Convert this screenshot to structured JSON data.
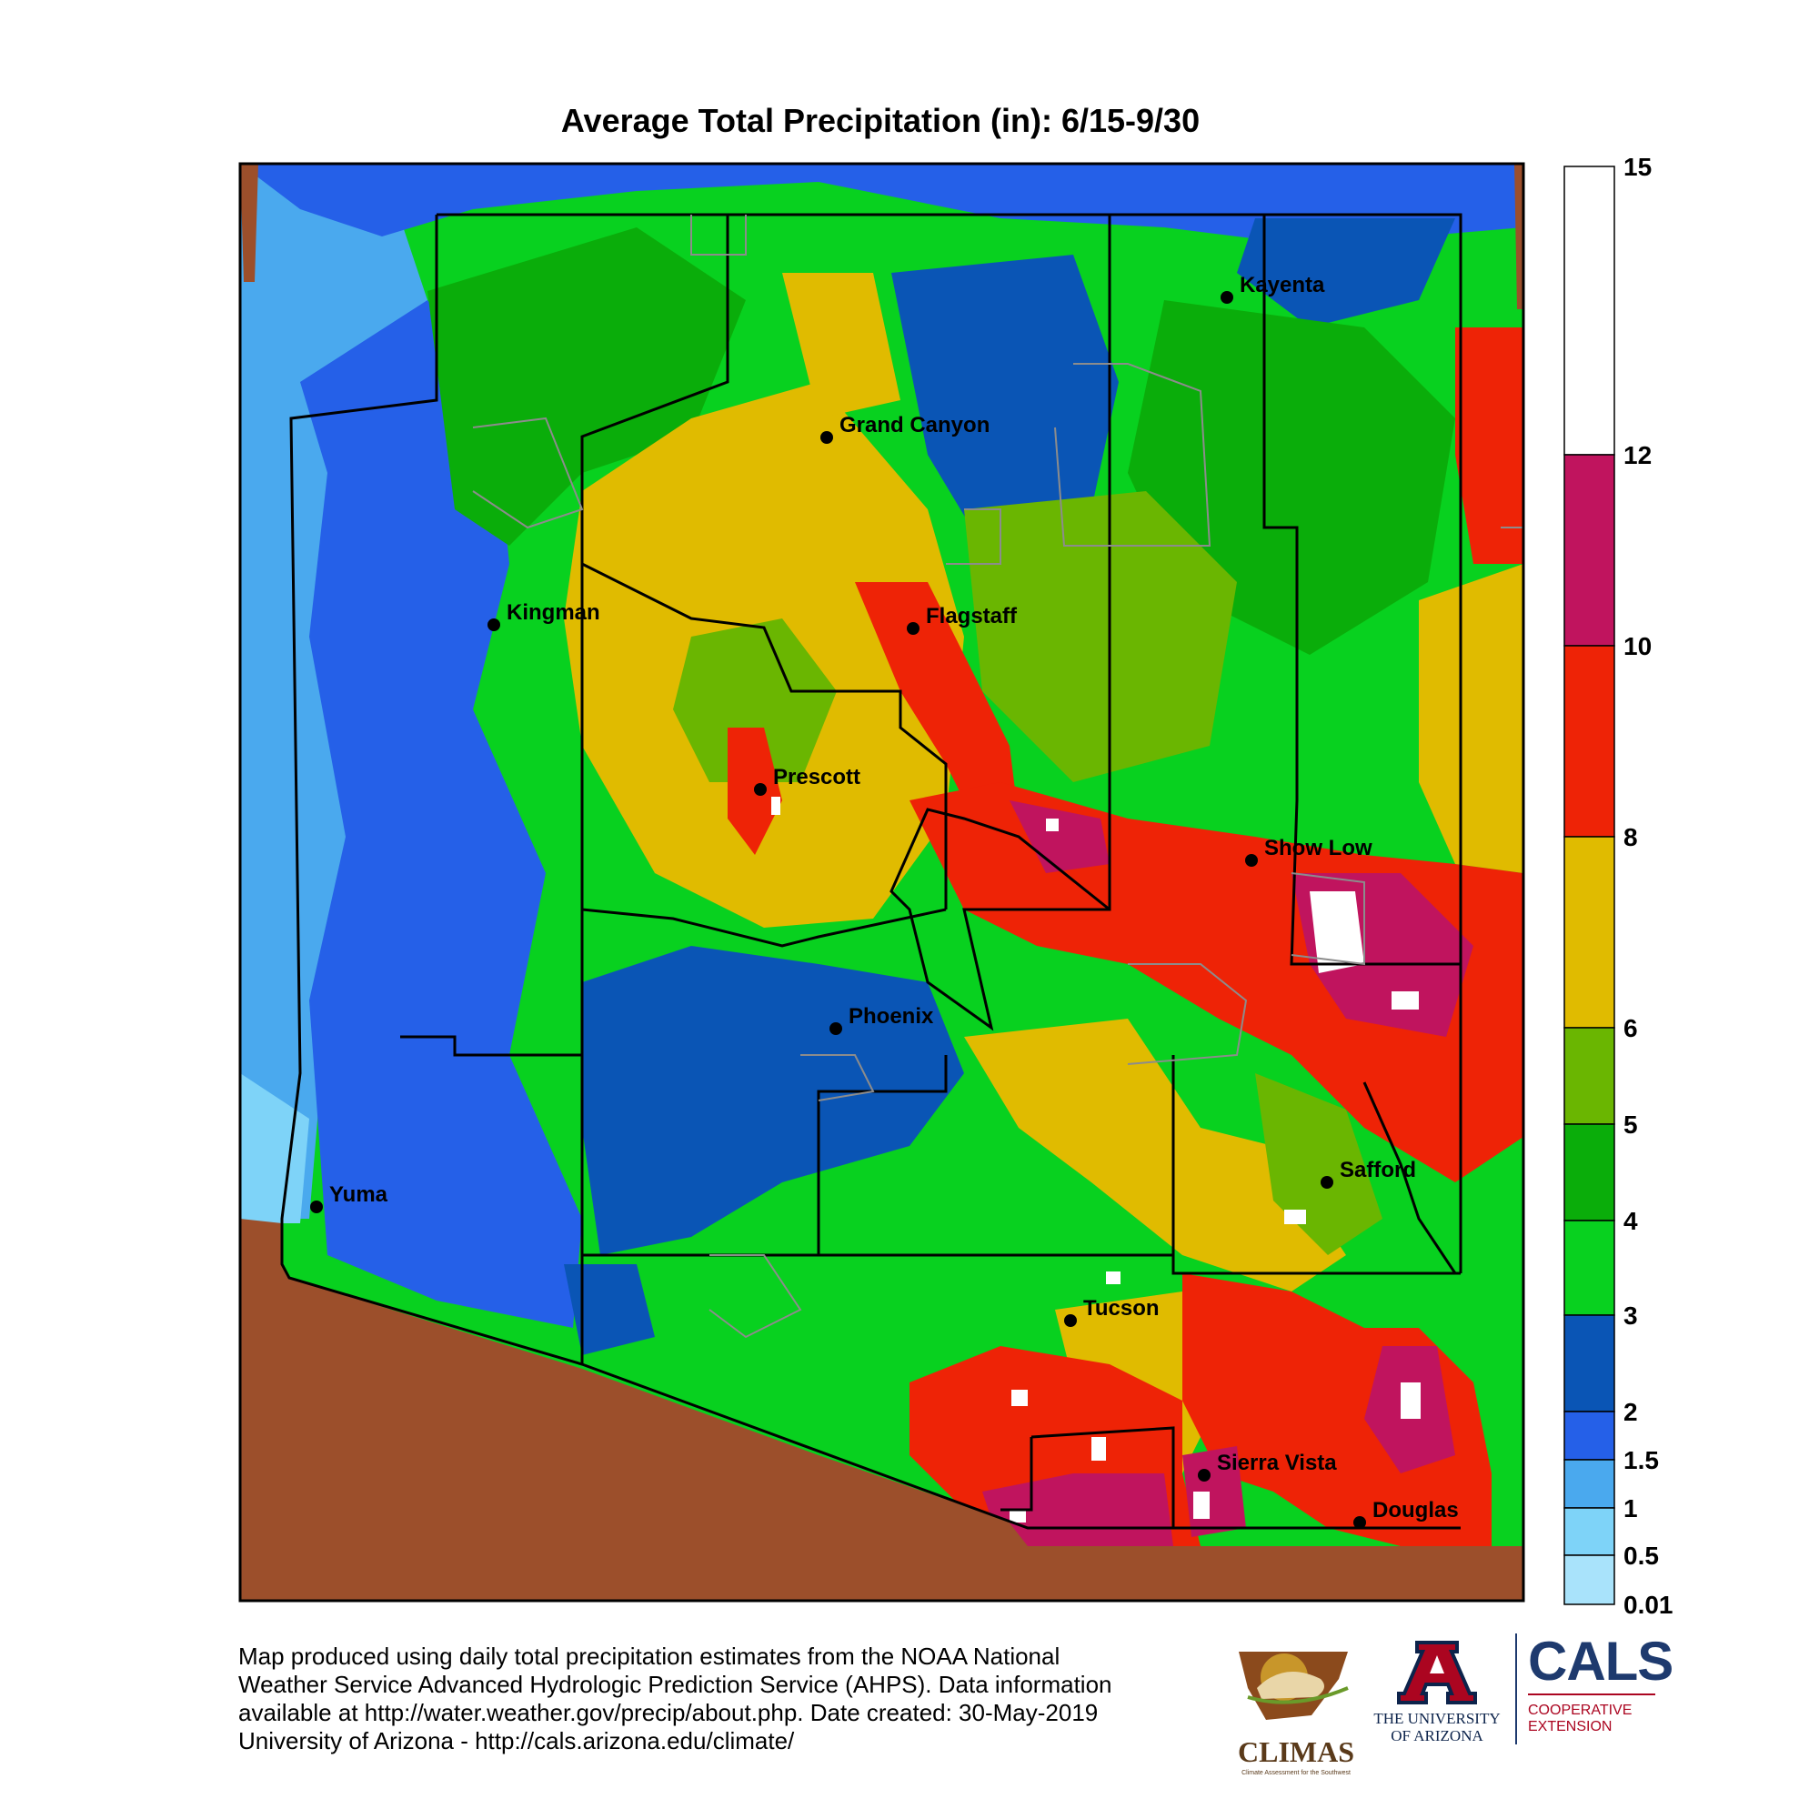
{
  "title": "Average Total Precipitation (in): 6/15-9/30",
  "legend": {
    "ticks": [
      "15",
      "12",
      "10",
      "8",
      "6",
      "5",
      "4",
      "3",
      "2",
      "1.5",
      "1",
      "0.5",
      "0.01"
    ],
    "colors": [
      "#ffffff",
      "#c0145e",
      "#ee2306",
      "#e0bb00",
      "#6ab601",
      "#0aad0a",
      "#08d11f",
      "#0a55b5",
      "#2560e8",
      "#4aa9ee",
      "#7ed3f8",
      "#a9e3fb"
    ]
  },
  "cities": [
    {
      "name": "Kayenta"
    },
    {
      "name": "Grand Canyon"
    },
    {
      "name": "Kingman"
    },
    {
      "name": "Flagstaff"
    },
    {
      "name": "Prescott"
    },
    {
      "name": "Show Low"
    },
    {
      "name": "Phoenix"
    },
    {
      "name": "Safford"
    },
    {
      "name": "Yuma"
    },
    {
      "name": "Tucson"
    },
    {
      "name": "Sierra Vista"
    },
    {
      "name": "Douglas"
    }
  ],
  "footer": {
    "lines": [
      "Map produced using daily total precipitation estimates from the NOAA National",
      "Weather Service Advanced Hydrologic Prediction Service (AHPS). Data information",
      "available at http://water.weather.gov/precip/about.php. Date created: 30-May-2019",
      "University of Arizona - http://cals.arizona.edu/climate/"
    ]
  },
  "logos": {
    "climas": "CLIMAS",
    "climas_tagline": "Climate Assessment for the Southwest",
    "ua_line1": "THE UNIVERSITY",
    "ua_line2": "OF ARIZONA",
    "cals": "CALS",
    "cals_line1": "COOPERATIVE",
    "cals_line2": "EXTENSION"
  },
  "colors": {
    "outside_mexico": "#9c4f2b",
    "county_lines": "#000000",
    "reservation_lines": "#8c8c8c",
    "ua_red": "#ab0520",
    "ua_navy": "#0c234b",
    "cals_navy": "#1e3a6e",
    "climas_gold": "#c8962a"
  }
}
